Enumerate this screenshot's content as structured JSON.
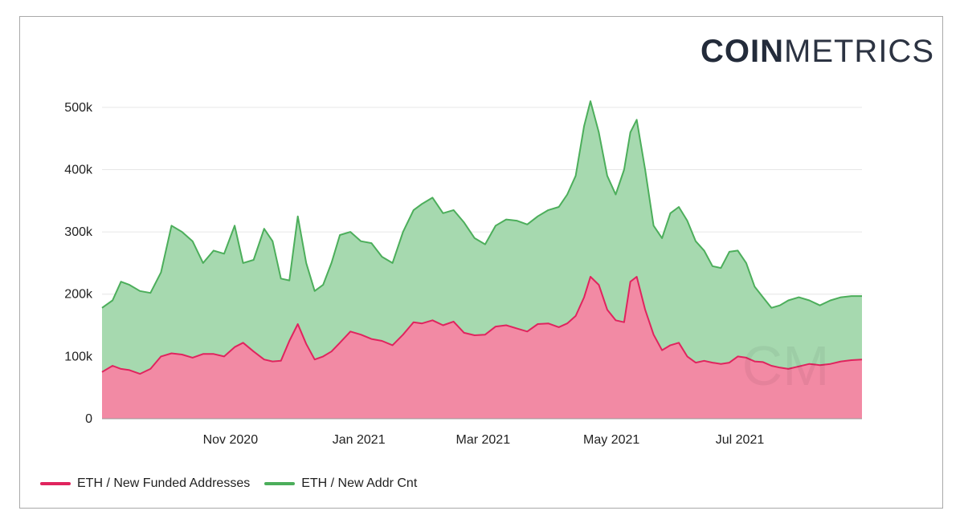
{
  "brand": {
    "bold": "COIN",
    "light": "METRICS"
  },
  "legend": [
    {
      "label": "ETH / New Funded Addresses",
      "color": "#e0245e"
    },
    {
      "label": "ETH / New Addr Cnt",
      "color": "#4cae5b"
    }
  ],
  "chart_data": {
    "type": "area",
    "title": "",
    "xlabel": "",
    "ylabel": "",
    "ylim": [
      0,
      550000
    ],
    "yticks": [
      0,
      100000,
      200000,
      300000,
      400000,
      500000
    ],
    "ytick_labels": [
      "0",
      "100k",
      "200k",
      "300k",
      "400k",
      "500k"
    ],
    "xticks": [
      "2020-11-01",
      "2021-01-01",
      "2021-03-01",
      "2021-05-01",
      "2021-07-01"
    ],
    "xtick_labels": [
      "Nov 2020",
      "Jan 2021",
      "Mar 2021",
      "May 2021",
      "Jul 2021"
    ],
    "xlim": [
      "2020-09-01",
      "2021-08-28"
    ],
    "grid": true,
    "legend_position": "bottom-left",
    "x": [
      "2020-09-01",
      "2020-09-06",
      "2020-09-10",
      "2020-09-14",
      "2020-09-19",
      "2020-09-24",
      "2020-09-29",
      "2020-10-04",
      "2020-10-09",
      "2020-10-14",
      "2020-10-19",
      "2020-10-24",
      "2020-10-29",
      "2020-11-03",
      "2020-11-07",
      "2020-11-12",
      "2020-11-17",
      "2020-11-21",
      "2020-11-25",
      "2020-11-29",
      "2020-12-03",
      "2020-12-07",
      "2020-12-11",
      "2020-12-15",
      "2020-12-19",
      "2020-12-23",
      "2020-12-28",
      "2021-01-02",
      "2021-01-07",
      "2021-01-12",
      "2021-01-17",
      "2021-01-22",
      "2021-01-27",
      "2021-01-31",
      "2021-02-05",
      "2021-02-10",
      "2021-02-15",
      "2021-02-20",
      "2021-02-25",
      "2021-03-02",
      "2021-03-07",
      "2021-03-12",
      "2021-03-17",
      "2021-03-22",
      "2021-03-27",
      "2021-04-01",
      "2021-04-06",
      "2021-04-10",
      "2021-04-14",
      "2021-04-18",
      "2021-04-21",
      "2021-04-25",
      "2021-04-29",
      "2021-05-03",
      "2021-05-07",
      "2021-05-10",
      "2021-05-13",
      "2021-05-17",
      "2021-05-21",
      "2021-05-25",
      "2021-05-29",
      "2021-06-02",
      "2021-06-06",
      "2021-06-10",
      "2021-06-14",
      "2021-06-18",
      "2021-06-22",
      "2021-06-26",
      "2021-06-30",
      "2021-07-04",
      "2021-07-08",
      "2021-07-12",
      "2021-07-16",
      "2021-07-20",
      "2021-07-24",
      "2021-07-29",
      "2021-08-03",
      "2021-08-08",
      "2021-08-13",
      "2021-08-18",
      "2021-08-23",
      "2021-08-28"
    ],
    "series": [
      {
        "name": "ETH / New Funded Addresses",
        "color": "#e0245e",
        "fill": "#f28aa4",
        "values": [
          75000,
          85000,
          80000,
          78000,
          72000,
          80000,
          100000,
          105000,
          103000,
          98000,
          104000,
          104000,
          100000,
          115000,
          122000,
          108000,
          95000,
          92000,
          93000,
          125000,
          152000,
          120000,
          95000,
          100000,
          108000,
          122000,
          140000,
          135000,
          128000,
          125000,
          118000,
          135000,
          155000,
          153000,
          158000,
          150000,
          156000,
          138000,
          134000,
          135000,
          148000,
          150000,
          145000,
          140000,
          152000,
          153000,
          147000,
          153000,
          165000,
          195000,
          228000,
          215000,
          175000,
          158000,
          155000,
          220000,
          228000,
          175000,
          135000,
          110000,
          118000,
          122000,
          100000,
          90000,
          93000,
          90000,
          88000,
          90000,
          100000,
          98000,
          92000,
          91000,
          85000,
          82000,
          80000,
          84000,
          88000,
          86000,
          88000,
          92000,
          94000,
          95000
        ]
      },
      {
        "name": "ETH / New Addr Cnt",
        "color": "#4cae5b",
        "fill": "#a6d9af",
        "values": [
          178000,
          190000,
          220000,
          215000,
          205000,
          202000,
          235000,
          310000,
          300000,
          285000,
          250000,
          270000,
          265000,
          310000,
          250000,
          255000,
          305000,
          285000,
          225000,
          222000,
          325000,
          250000,
          205000,
          215000,
          250000,
          295000,
          300000,
          285000,
          282000,
          260000,
          250000,
          300000,
          335000,
          345000,
          355000,
          330000,
          335000,
          315000,
          290000,
          280000,
          310000,
          320000,
          318000,
          312000,
          325000,
          335000,
          340000,
          360000,
          390000,
          470000,
          510000,
          460000,
          390000,
          360000,
          400000,
          460000,
          480000,
          400000,
          310000,
          290000,
          330000,
          340000,
          318000,
          285000,
          270000,
          245000,
          242000,
          268000,
          270000,
          250000,
          212000,
          195000,
          178000,
          182000,
          190000,
          195000,
          190000,
          182000,
          190000,
          195000,
          197000,
          197000
        ]
      }
    ]
  }
}
